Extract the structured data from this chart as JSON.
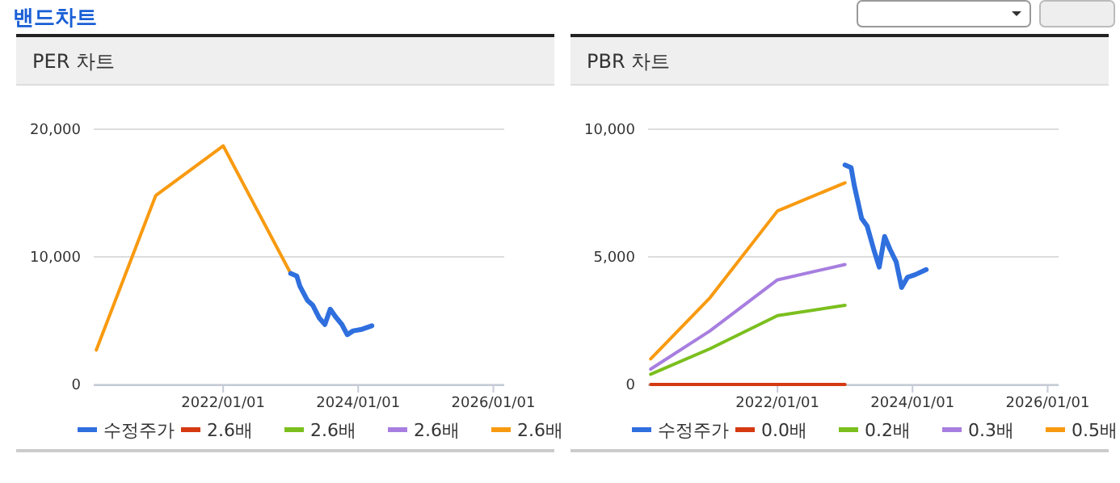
{
  "chart_data": [
    {
      "type": "line",
      "title": "PER 차트",
      "annotations": [
        "밴드차트"
      ],
      "xlim": [
        "2020-02-01",
        "2026-03-01"
      ],
      "xticks": [
        {
          "value": "2022-01-01",
          "label": "2022/01/01"
        },
        {
          "value": "2024-01-01",
          "label": "2024/01/01"
        },
        {
          "value": "2026-01-01",
          "label": "2026/01/01"
        }
      ],
      "ylim": [
        0,
        20000
      ],
      "yticks": [
        {
          "value": 0,
          "label": "0"
        },
        {
          "value": 10000,
          "label": "10,000"
        },
        {
          "value": 20000,
          "label": "20,000"
        }
      ],
      "grid": "y",
      "legend": "bottom",
      "series": [
        {
          "name": "수정주가",
          "color": "#2f6fde",
          "x": [
            "2023-01-01",
            "2023-02-03",
            "2023-02-20",
            "2023-04-01",
            "2023-05-01",
            "2023-06-05",
            "2023-07-05",
            "2023-08-03",
            "2023-09-01",
            "2023-10-05",
            "2023-11-03",
            "2023-12-05",
            "2024-01-15",
            "2024-03-15"
          ],
          "values": [
            8700,
            8500,
            7700,
            6600,
            6200,
            5200,
            4700,
            5900,
            5300,
            4700,
            3900,
            4200,
            4300,
            4600
          ]
        },
        {
          "name": "2.6배",
          "color": "#d53a12",
          "values": [
            null,
            null,
            null,
            null
          ]
        },
        {
          "name": "2.6배",
          "color": "#7bbf1e",
          "values": [
            null,
            null,
            null,
            null
          ]
        },
        {
          "name": "2.6배",
          "color": "#a77ee0",
          "values": [
            null,
            null,
            null,
            null
          ]
        },
        {
          "name": "2.6배",
          "color": "#f89a10",
          "x": [
            "2020-02-15",
            "2021-01-01",
            "2022-01-01",
            "2023-01-01"
          ],
          "values": [
            2700,
            14800,
            18700,
            8700
          ]
        }
      ]
    },
    {
      "type": "line",
      "title": "PBR 차트",
      "xlim": [
        "2020-02-01",
        "2026-03-01"
      ],
      "xticks": [
        {
          "value": "2022-01-01",
          "label": "2022/01/01"
        },
        {
          "value": "2024-01-01",
          "label": "2024/01/01"
        },
        {
          "value": "2026-01-01",
          "label": "2026/01/01"
        }
      ],
      "ylim": [
        0,
        10000
      ],
      "yticks": [
        {
          "value": 0,
          "label": "0"
        },
        {
          "value": 5000,
          "label": "5,000"
        },
        {
          "value": 10000,
          "label": "10,000"
        }
      ],
      "grid": "y",
      "legend": "bottom",
      "series": [
        {
          "name": "수정주가",
          "color": "#2f6fde",
          "x": [
            "2023-01-01",
            "2023-02-03",
            "2023-02-20",
            "2023-04-01",
            "2023-05-01",
            "2023-06-05",
            "2023-07-05",
            "2023-08-03",
            "2023-09-01",
            "2023-10-05",
            "2023-11-03",
            "2023-12-05",
            "2024-01-15",
            "2024-03-15"
          ],
          "values": [
            8600,
            8500,
            7800,
            6500,
            6200,
            5300,
            4600,
            5800,
            5300,
            4800,
            3800,
            4200,
            4300,
            4500
          ]
        },
        {
          "name": "0.0배",
          "color": "#d53a12",
          "x": [
            "2020-02-15",
            "2021-01-01",
            "2022-01-01",
            "2023-01-01"
          ],
          "values": [
            0,
            0,
            0,
            0
          ]
        },
        {
          "name": "0.2배",
          "color": "#7bbf1e",
          "x": [
            "2020-02-15",
            "2021-01-01",
            "2022-01-01",
            "2023-01-01"
          ],
          "values": [
            400,
            1400,
            2700,
            3100
          ]
        },
        {
          "name": "0.3배",
          "color": "#a77ee0",
          "x": [
            "2020-02-15",
            "2021-01-01",
            "2022-01-01",
            "2023-01-01"
          ],
          "values": [
            600,
            2100,
            4100,
            4700
          ]
        },
        {
          "name": "0.5배",
          "color": "#f89a10",
          "x": [
            "2020-02-15",
            "2021-01-01",
            "2022-01-01",
            "2023-01-01"
          ],
          "values": [
            1000,
            3400,
            6800,
            7900
          ]
        }
      ]
    }
  ]
}
